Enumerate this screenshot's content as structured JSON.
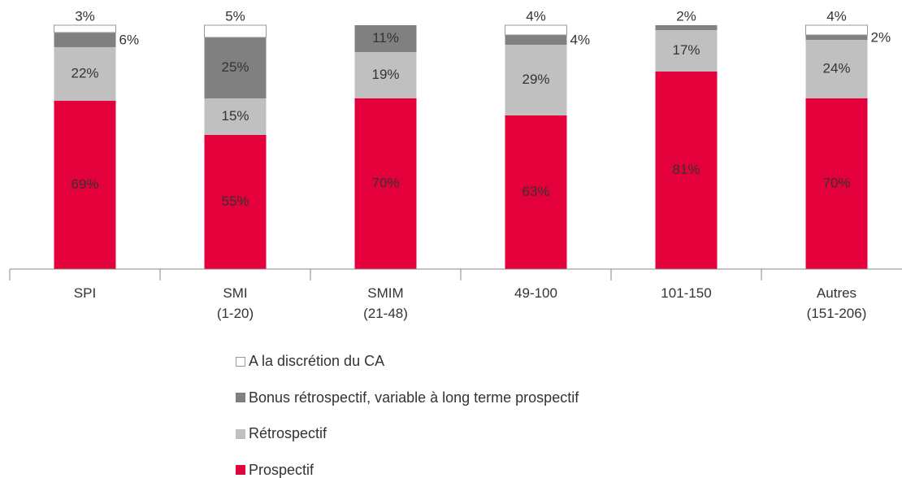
{
  "chart_data": {
    "type": "stacked_bar",
    "categories": [
      "SPI",
      "SMI\n(1-20)",
      "SMIM\n(21-48)",
      "49-100",
      "101-150",
      "Autres\n(151-206)"
    ],
    "ylim": [
      0,
      100
    ],
    "series": [
      {
        "name": "A la discrétion du CA",
        "color": "#ffffff",
        "values": [
          3,
          5,
          null,
          4,
          null,
          4
        ],
        "value_labels": [
          "3%",
          "5%",
          null,
          "4%",
          null,
          "4%"
        ]
      },
      {
        "name": "Bonus rétrospectif, variable à long terme prospectif",
        "color": "#808080",
        "values": [
          6,
          25,
          11,
          4,
          2,
          2
        ],
        "value_labels": [
          "6%",
          "25%",
          "11%",
          "4%",
          "2%",
          "2%"
        ]
      },
      {
        "name": "Rétrospectif",
        "color": "#c0c0c0",
        "values": [
          22,
          15,
          19,
          29,
          17,
          24
        ],
        "value_labels": [
          "22%",
          "15%",
          "19%",
          "29%",
          "17%",
          "24%"
        ]
      },
      {
        "name": "Prospectif",
        "color": "#e4003a",
        "values": [
          69,
          55,
          70,
          63,
          81,
          70
        ],
        "value_labels": [
          "69%",
          "55%",
          "70%",
          "63%",
          "81%",
          "70%"
        ]
      }
    ]
  }
}
